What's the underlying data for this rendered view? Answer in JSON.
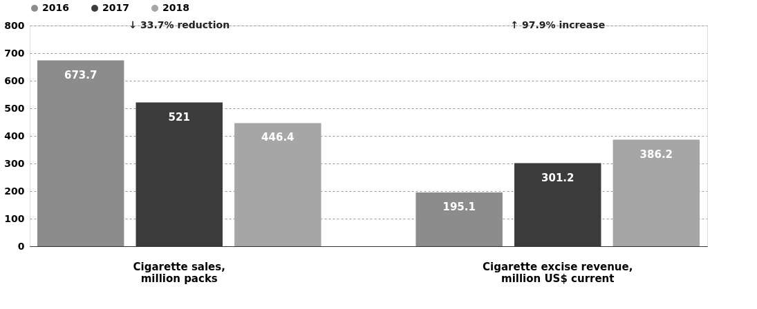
{
  "chart_data": {
    "type": "bar",
    "categories": [
      "Cigarette sales, million packs",
      "Cigarette excise revenue, million US$ current"
    ],
    "series": [
      {
        "name": "2016",
        "color": "#8c8c8c",
        "values": [
          673.7,
          195.1
        ]
      },
      {
        "name": "2017",
        "color": "#3b3b3b",
        "values": [
          521,
          301.2
        ]
      },
      {
        "name": "2018",
        "color": "#a6a6a6",
        "values": [
          446.4,
          386.2
        ]
      }
    ],
    "ylim": [
      0,
      800
    ],
    "yticks": [
      0,
      100,
      200,
      300,
      400,
      500,
      600,
      700,
      800
    ],
    "grid": "y",
    "legend": "top left",
    "data_labels": true,
    "annotations": [
      "↓ 33.7% reduction",
      "↑ 97.9% increase"
    ]
  }
}
